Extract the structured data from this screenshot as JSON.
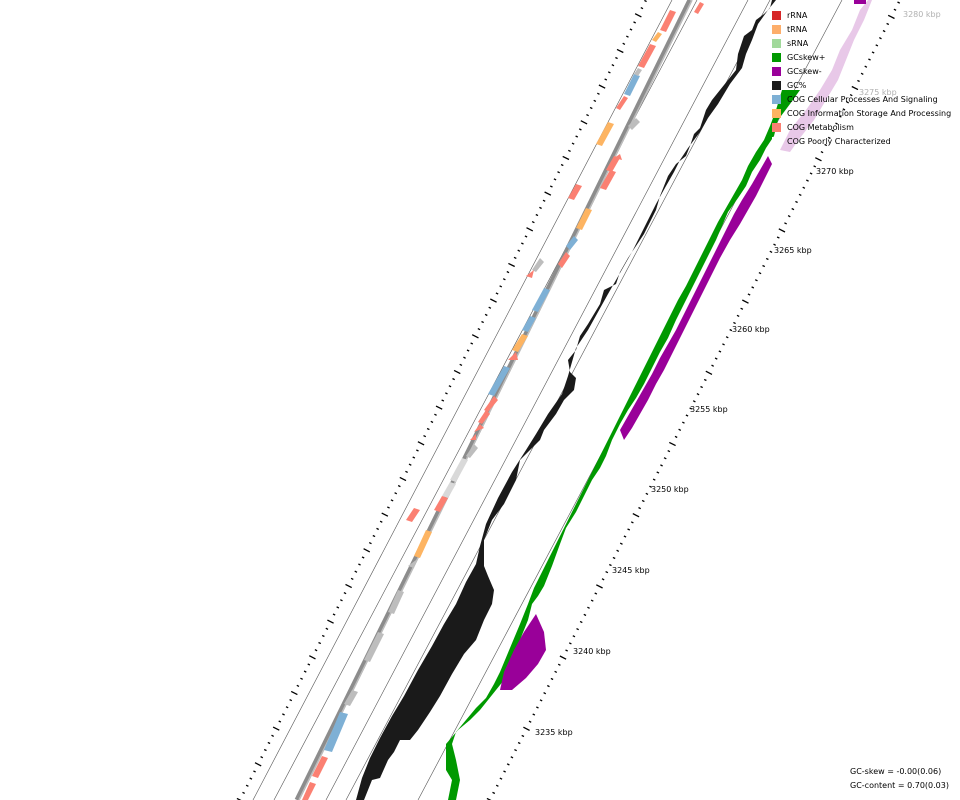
{
  "legend": [
    {
      "label": "rRNA",
      "color": "#d62728"
    },
    {
      "label": "tRNA",
      "color": "#fdae6b"
    },
    {
      "label": "sRNA",
      "color": "#a1d99b"
    },
    {
      "label": "GCskew+",
      "color": "#009900"
    },
    {
      "label": "GCskew-",
      "color": "#990099"
    },
    {
      "label": "GC%",
      "color": "#1a1a1a"
    },
    {
      "label": "COG Cellular Processes And Signaling",
      "color": "#7eb0d5"
    },
    {
      "label": "COG Information Storage And Processing",
      "color": "#fdb462"
    },
    {
      "label": "COG Metabolism",
      "color": "#fb8072"
    },
    {
      "label": "COG Poorly Characterized",
      "color": "#bdbdbd"
    }
  ],
  "ticks": [
    {
      "label": "3235 kbp",
      "faded": false
    },
    {
      "label": "3240 kbp",
      "faded": false
    },
    {
      "label": "3245 kbp",
      "faded": false
    },
    {
      "label": "3250 kbp",
      "faded": false
    },
    {
      "label": "3255 kbp",
      "faded": false
    },
    {
      "label": "3260 kbp",
      "faded": false
    },
    {
      "label": "3265 kbp",
      "faded": false
    },
    {
      "label": "3270 kbp",
      "faded": false
    },
    {
      "label": "3275 kbp",
      "faded": true
    },
    {
      "label": "3280 kbp",
      "faded": true
    }
  ],
  "stats": {
    "gc_skew": "GC-skew = -0.00(0.06)",
    "gc_content": "GC-content = 0.70(0.03)"
  },
  "colors": {
    "gc_content": "#1a1a1a",
    "gc_skew_plus": "#009900",
    "gc_skew_minus": "#990099",
    "backbone": "#808080",
    "ring_line": "#555555"
  }
}
